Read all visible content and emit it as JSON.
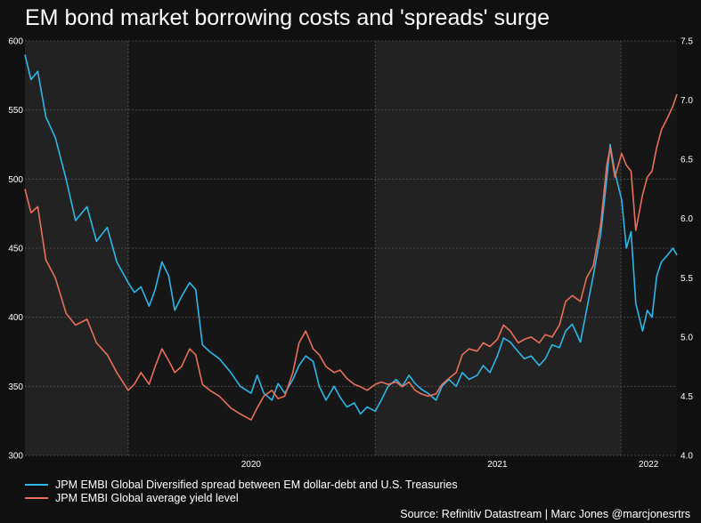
{
  "title": "EM bond market borrowing costs and 'spreads' surge",
  "source": "Source: Refinitiv Datastream | Marc Jones @marcjonesrtrs",
  "colors": {
    "spread": "#2fb6e8",
    "yield": "#e8705a",
    "background": "#101010",
    "plot_bg": "#161616",
    "shade": "#222222",
    "grid": "#555555"
  },
  "chart_data": {
    "type": "line",
    "title": "EM bond market borrowing costs and 'spreads' surge",
    "x_ticks": [
      "2020",
      "2021",
      "2022"
    ],
    "x_range": [
      "2019-08-01",
      "2022-03-24"
    ],
    "shaded_periods": [
      [
        "2019-08-01",
        "2020-01-01"
      ],
      [
        "2021-01-01",
        "2021-12-31"
      ]
    ],
    "y_left": {
      "min": 300,
      "max": 600,
      "ticks": [
        "300",
        "350",
        "400",
        "450",
        "500",
        "550",
        "600"
      ]
    },
    "y_right": {
      "min": 4.0,
      "max": 7.5,
      "ticks": [
        "4.0",
        "4.5",
        "5.0",
        "5.5",
        "6.0",
        "6.5",
        "7.0",
        "7.5"
      ]
    },
    "grid": true,
    "legend_position": "bottom-left",
    "series": [
      {
        "name": "JPM EMBI Global Diversified spread between EM dollar-debt and U.S. Treasuries",
        "axis": "left",
        "points": [
          [
            "2019-08-01",
            590
          ],
          [
            "2019-08-10",
            572
          ],
          [
            "2019-08-20",
            578
          ],
          [
            "2019-09-01",
            545
          ],
          [
            "2019-09-15",
            530
          ],
          [
            "2019-10-01",
            500
          ],
          [
            "2019-10-15",
            470
          ],
          [
            "2019-11-01",
            480
          ],
          [
            "2019-11-15",
            455
          ],
          [
            "2019-12-01",
            465
          ],
          [
            "2019-12-15",
            440
          ],
          [
            "2020-01-01",
            425
          ],
          [
            "2020-01-10",
            418
          ],
          [
            "2020-01-20",
            422
          ],
          [
            "2020-02-01",
            408
          ],
          [
            "2020-02-10",
            420
          ],
          [
            "2020-02-20",
            440
          ],
          [
            "2020-03-01",
            430
          ],
          [
            "2020-03-10",
            405
          ],
          [
            "2020-03-20",
            415
          ],
          [
            "2020-04-01",
            425
          ],
          [
            "2020-04-10",
            420
          ],
          [
            "2020-04-20",
            380
          ],
          [
            "2020-05-01",
            375
          ],
          [
            "2020-05-15",
            370
          ],
          [
            "2020-06-01",
            360
          ],
          [
            "2020-06-15",
            350
          ],
          [
            "2020-07-01",
            345
          ],
          [
            "2020-07-10",
            358
          ],
          [
            "2020-07-20",
            345
          ],
          [
            "2020-08-01",
            340
          ],
          [
            "2020-08-10",
            352
          ],
          [
            "2020-08-20",
            345
          ],
          [
            "2020-09-01",
            355
          ],
          [
            "2020-09-10",
            365
          ],
          [
            "2020-09-20",
            372
          ],
          [
            "2020-10-01",
            368
          ],
          [
            "2020-10-10",
            350
          ],
          [
            "2020-10-20",
            340
          ],
          [
            "2020-11-01",
            350
          ],
          [
            "2020-11-10",
            342
          ],
          [
            "2020-11-20",
            335
          ],
          [
            "2020-12-01",
            338
          ],
          [
            "2020-12-10",
            330
          ],
          [
            "2020-12-20",
            335
          ],
          [
            "2021-01-01",
            332
          ],
          [
            "2021-01-10",
            340
          ],
          [
            "2021-01-20",
            350
          ],
          [
            "2021-02-01",
            355
          ],
          [
            "2021-02-10",
            350
          ],
          [
            "2021-02-20",
            358
          ],
          [
            "2021-03-01",
            352
          ],
          [
            "2021-03-10",
            348
          ],
          [
            "2021-03-20",
            345
          ],
          [
            "2021-04-01",
            340
          ],
          [
            "2021-04-10",
            350
          ],
          [
            "2021-04-20",
            355
          ],
          [
            "2021-05-01",
            350
          ],
          [
            "2021-05-10",
            360
          ],
          [
            "2021-05-20",
            355
          ],
          [
            "2021-06-01",
            358
          ],
          [
            "2021-06-10",
            365
          ],
          [
            "2021-06-20",
            360
          ],
          [
            "2021-07-01",
            372
          ],
          [
            "2021-07-10",
            385
          ],
          [
            "2021-07-20",
            382
          ],
          [
            "2021-08-01",
            375
          ],
          [
            "2021-08-10",
            370
          ],
          [
            "2021-08-20",
            372
          ],
          [
            "2021-09-01",
            365
          ],
          [
            "2021-09-10",
            370
          ],
          [
            "2021-09-20",
            380
          ],
          [
            "2021-10-01",
            378
          ],
          [
            "2021-10-10",
            390
          ],
          [
            "2021-10-20",
            395
          ],
          [
            "2021-11-01",
            382
          ],
          [
            "2021-11-10",
            405
          ],
          [
            "2021-11-20",
            430
          ],
          [
            "2021-12-01",
            460
          ],
          [
            "2021-12-10",
            500
          ],
          [
            "2021-12-15",
            525
          ],
          [
            "2021-12-22",
            505
          ],
          [
            "2022-01-01",
            485
          ],
          [
            "2022-01-08",
            450
          ],
          [
            "2022-01-15",
            462
          ],
          [
            "2022-01-22",
            410
          ],
          [
            "2022-02-01",
            390
          ],
          [
            "2022-02-08",
            405
          ],
          [
            "2022-02-15",
            400
          ],
          [
            "2022-02-22",
            430
          ],
          [
            "2022-03-01",
            440
          ],
          [
            "2022-03-10",
            445
          ],
          [
            "2022-03-18",
            450
          ],
          [
            "2022-03-24",
            445
          ]
        ]
      },
      {
        "name": "JPM EMBI Global average yield level",
        "axis": "right",
        "points": [
          [
            "2019-08-01",
            6.25
          ],
          [
            "2019-08-10",
            6.05
          ],
          [
            "2019-08-20",
            6.1
          ],
          [
            "2019-09-01",
            5.65
          ],
          [
            "2019-09-15",
            5.5
          ],
          [
            "2019-10-01",
            5.2
          ],
          [
            "2019-10-15",
            5.1
          ],
          [
            "2019-11-01",
            5.15
          ],
          [
            "2019-11-15",
            4.95
          ],
          [
            "2019-12-01",
            4.85
          ],
          [
            "2019-12-15",
            4.7
          ],
          [
            "2020-01-01",
            4.55
          ],
          [
            "2020-01-10",
            4.6
          ],
          [
            "2020-01-20",
            4.7
          ],
          [
            "2020-02-01",
            4.6
          ],
          [
            "2020-02-10",
            4.75
          ],
          [
            "2020-02-20",
            4.9
          ],
          [
            "2020-03-01",
            4.8
          ],
          [
            "2020-03-10",
            4.7
          ],
          [
            "2020-03-20",
            4.75
          ],
          [
            "2020-04-01",
            4.9
          ],
          [
            "2020-04-10",
            4.85
          ],
          [
            "2020-04-20",
            4.6
          ],
          [
            "2020-05-01",
            4.55
          ],
          [
            "2020-05-15",
            4.5
          ],
          [
            "2020-06-01",
            4.4
          ],
          [
            "2020-06-15",
            4.35
          ],
          [
            "2020-07-01",
            4.3
          ],
          [
            "2020-07-10",
            4.4
          ],
          [
            "2020-07-20",
            4.5
          ],
          [
            "2020-08-01",
            4.55
          ],
          [
            "2020-08-10",
            4.48
          ],
          [
            "2020-08-20",
            4.5
          ],
          [
            "2020-09-01",
            4.7
          ],
          [
            "2020-09-10",
            4.95
          ],
          [
            "2020-09-20",
            5.05
          ],
          [
            "2020-10-01",
            4.9
          ],
          [
            "2020-10-10",
            4.85
          ],
          [
            "2020-10-20",
            4.75
          ],
          [
            "2020-11-01",
            4.7
          ],
          [
            "2020-11-10",
            4.72
          ],
          [
            "2020-11-20",
            4.65
          ],
          [
            "2020-12-01",
            4.6
          ],
          [
            "2020-12-10",
            4.58
          ],
          [
            "2020-12-20",
            4.55
          ],
          [
            "2021-01-01",
            4.6
          ],
          [
            "2021-01-10",
            4.62
          ],
          [
            "2021-01-20",
            4.6
          ],
          [
            "2021-02-01",
            4.62
          ],
          [
            "2021-02-10",
            4.58
          ],
          [
            "2021-02-20",
            4.62
          ],
          [
            "2021-03-01",
            4.55
          ],
          [
            "2021-03-10",
            4.52
          ],
          [
            "2021-03-20",
            4.5
          ],
          [
            "2021-04-01",
            4.52
          ],
          [
            "2021-04-10",
            4.6
          ],
          [
            "2021-04-20",
            4.65
          ],
          [
            "2021-05-01",
            4.7
          ],
          [
            "2021-05-10",
            4.85
          ],
          [
            "2021-05-20",
            4.9
          ],
          [
            "2021-06-01",
            4.88
          ],
          [
            "2021-06-10",
            4.95
          ],
          [
            "2021-06-20",
            4.92
          ],
          [
            "2021-07-01",
            4.98
          ],
          [
            "2021-07-10",
            5.1
          ],
          [
            "2021-07-20",
            5.05
          ],
          [
            "2021-08-01",
            4.95
          ],
          [
            "2021-08-10",
            4.98
          ],
          [
            "2021-08-20",
            5.0
          ],
          [
            "2021-09-01",
            4.95
          ],
          [
            "2021-09-10",
            5.02
          ],
          [
            "2021-09-20",
            5.0
          ],
          [
            "2021-10-01",
            5.1
          ],
          [
            "2021-10-10",
            5.3
          ],
          [
            "2021-10-20",
            5.35
          ],
          [
            "2021-11-01",
            5.3
          ],
          [
            "2021-11-10",
            5.5
          ],
          [
            "2021-11-20",
            5.6
          ],
          [
            "2021-12-01",
            5.95
          ],
          [
            "2021-12-10",
            6.45
          ],
          [
            "2021-12-15",
            6.6
          ],
          [
            "2021-12-22",
            6.35
          ],
          [
            "2022-01-01",
            6.55
          ],
          [
            "2022-01-08",
            6.45
          ],
          [
            "2022-01-15",
            6.4
          ],
          [
            "2022-01-22",
            5.9
          ],
          [
            "2022-02-01",
            6.2
          ],
          [
            "2022-02-08",
            6.35
          ],
          [
            "2022-02-15",
            6.4
          ],
          [
            "2022-02-22",
            6.6
          ],
          [
            "2022-03-01",
            6.75
          ],
          [
            "2022-03-10",
            6.85
          ],
          [
            "2022-03-18",
            6.95
          ],
          [
            "2022-03-24",
            7.05
          ]
        ]
      }
    ]
  }
}
